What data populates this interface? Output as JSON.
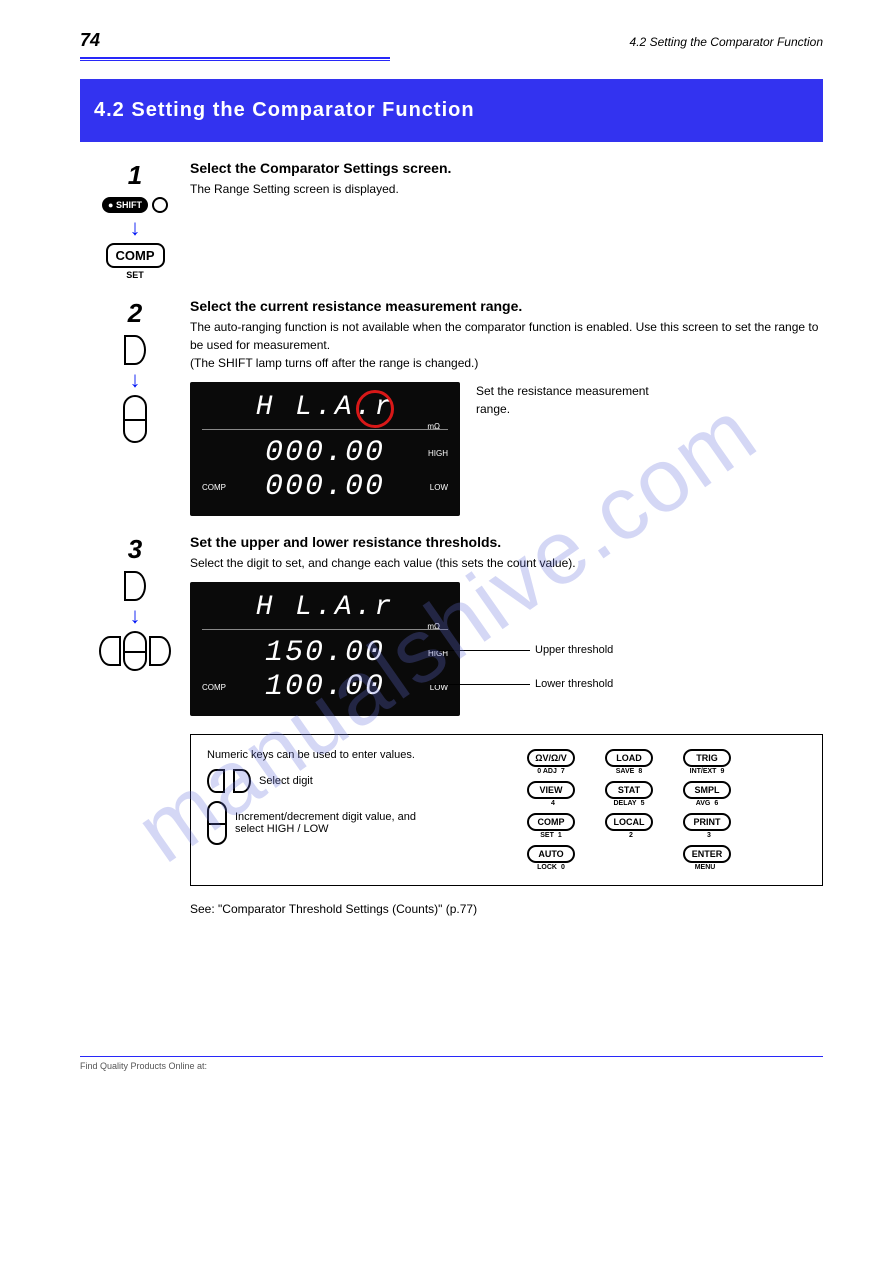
{
  "header": {
    "page_number": "74",
    "section_ref": "4.2 Setting the Comparator Function"
  },
  "banner": "4.2 Setting the Comparator Function",
  "step1": {
    "num": "1",
    "title": "Select the Comparator Settings screen.",
    "text": "The Range Setting screen is displayed."
  },
  "step2": {
    "num": "2",
    "title": "Select the current resistance measurement range.",
    "note1": "The auto-ranging function is not available when the comparator function is enabled. Use this screen to set the range to be used for measurement.",
    "note2_prefix": "(The SHIFT lamp turns off after the ",
    "note2_suffix": " is changed.)",
    "range_word": "range",
    "lcd": {
      "top": "H L.A.r",
      "unit": "mΩ",
      "comp": "COMP",
      "high_val": "000.00",
      "high_tag": "HIGH",
      "low_val": "000.00",
      "low_tag": "LOW"
    },
    "caption": "Set the resistance measurement range."
  },
  "step3": {
    "num": "3",
    "title": "Set the upper and lower resistance thresholds.",
    "hint": "Select the digit to set, and change each value (this sets the count value).",
    "lcd": {
      "top": "H L.A.r",
      "unit": "mΩ",
      "comp": "COMP",
      "high_val": "150.00",
      "high_tag": "HIGH",
      "low_val": "100.00",
      "low_tag": "LOW"
    },
    "callout_high": "Upper threshold",
    "callout_low": "Lower threshold"
  },
  "notebox": {
    "line1": "Numeric keys can be used to enter values.",
    "left_label": "Select digit",
    "updown_label": "Increment/decrement digit value, and select HIGH / LOW",
    "keypad": [
      {
        "main": "ΩV/Ω/V",
        "subL": "0 ADJ",
        "subR": "7"
      },
      {
        "main": "LOAD",
        "subL": "SAVE",
        "subR": "8"
      },
      {
        "main": "TRIG",
        "subL": "INT/EXT",
        "subR": "9"
      },
      {
        "main": "VIEW",
        "subL": "",
        "subR": "4"
      },
      {
        "main": "STAT",
        "subL": "DELAY",
        "subR": "5"
      },
      {
        "main": "SMPL",
        "subL": "AVG",
        "subR": "6"
      },
      {
        "main": "COMP",
        "subL": "SET",
        "subR": "1"
      },
      {
        "main": "LOCAL",
        "subL": "",
        "subR": "2"
      },
      {
        "main": "PRINT",
        "subL": "",
        "subR": "3"
      },
      {
        "main": "AUTO",
        "subL": "LOCK",
        "subR": "0"
      },
      {
        "main": "",
        "subL": "",
        "subR": ""
      },
      {
        "main": "ENTER",
        "subL": "MENU",
        "subR": ""
      }
    ]
  },
  "see": "See: \"Comparator Threshold Settings (Counts)\" (p.77)",
  "footer": "Find Quality Products Online at:",
  "watermark": "manualshive.com",
  "colors": {
    "banner_bg": "#3333f0",
    "accent_blue": "#2828f9",
    "arrow_blue": "#0015f5",
    "lcd_bg": "#0a0a0a",
    "red_circle": "#d81818",
    "watermark": "rgba(100,110,220,0.28)"
  }
}
